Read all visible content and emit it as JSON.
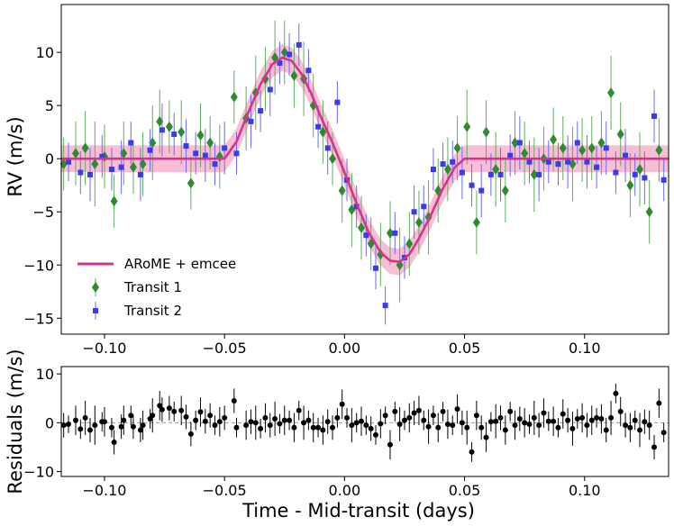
{
  "chart_data": [
    {
      "type": "scatter",
      "panel": "main",
      "ylabel": "RV (m/s)",
      "xlim": [
        -0.118,
        0.135
      ],
      "ylim": [
        -16.5,
        14.5
      ],
      "xticks": [
        -0.1,
        -0.05,
        0.0,
        0.05,
        0.1
      ],
      "xtick_labels": [
        "−0.10",
        "−0.05",
        "0.00",
        "0.05",
        "0.10"
      ],
      "yticks": [
        -15,
        -10,
        -5,
        0,
        5,
        10
      ],
      "ytick_labels": [
        "−15",
        "−10",
        "−5",
        "0",
        "5",
        "10"
      ],
      "grid": false,
      "legend": "lower-left",
      "model": {
        "name": "ARoME + emcee",
        "color": "#d6338a",
        "band_color": "#f7b3cf",
        "x": [
          -0.118,
          -0.05,
          -0.045,
          -0.04,
          -0.035,
          -0.03,
          -0.026,
          -0.022,
          -0.018,
          -0.014,
          -0.01,
          -0.005,
          0.0,
          0.005,
          0.01,
          0.015,
          0.019,
          0.023,
          0.027,
          0.031,
          0.036,
          0.041,
          0.046,
          0.05,
          0.135
        ],
        "y": [
          0,
          0,
          1.6,
          4.4,
          7.0,
          8.9,
          9.5,
          9.2,
          8.0,
          6.2,
          4.0,
          1.5,
          -1.3,
          -4.2,
          -6.9,
          -8.8,
          -9.6,
          -9.7,
          -9.0,
          -7.5,
          -5.3,
          -2.8,
          -0.8,
          0,
          0
        ]
      },
      "series": [
        {
          "name": "Transit 1",
          "marker": "diamond",
          "color": "#2e8b2e",
          "x": [
            -0.117,
            -0.112,
            -0.108,
            -0.104,
            -0.1,
            -0.096,
            -0.092,
            -0.088,
            -0.084,
            -0.08,
            -0.077,
            -0.073,
            -0.068,
            -0.064,
            -0.06,
            -0.056,
            -0.052,
            -0.046,
            -0.041,
            -0.037,
            -0.033,
            -0.029,
            -0.025,
            -0.021,
            -0.017,
            -0.013,
            -0.009,
            -0.005,
            -0.001,
            0.003,
            0.007,
            0.011,
            0.015,
            0.019,
            0.023,
            0.027,
            0.031,
            0.035,
            0.039,
            0.043,
            0.047,
            0.051,
            0.055,
            0.059,
            0.063,
            0.067,
            0.071,
            0.075,
            0.079,
            0.083,
            0.087,
            0.091,
            0.095,
            0.099,
            0.103,
            0.107,
            0.111,
            0.115,
            0.119,
            0.123,
            0.127,
            0.131
          ],
          "y": [
            -0.5,
            0.5,
            1.0,
            -0.5,
            0.2,
            -4.0,
            0.5,
            -0.8,
            -0.5,
            1.5,
            3.5,
            3.0,
            2.5,
            -2.3,
            2.2,
            1.5,
            0.2,
            5.8,
            3.8,
            6.2,
            7.5,
            9.5,
            10.0,
            7.8,
            7.5,
            5.0,
            2.5,
            0.0,
            -3.0,
            -4.8,
            -6.5,
            -8.0,
            -9.0,
            -7.0,
            -10.0,
            -8.0,
            -6.0,
            -5.5,
            -3.0,
            -1.0,
            1.0,
            3.0,
            -6.0,
            2.5,
            -1.0,
            -3.0,
            1.5,
            0.5,
            -1.5,
            0.0,
            1.8,
            1.0,
            -0.5,
            0.8,
            1.0,
            1.5,
            6.2,
            2.3,
            -2.5,
            -1.0,
            -5.0,
            0.8
          ],
          "yerr": [
            2.5,
            3.0,
            3.5,
            4.0,
            3.0,
            2.5,
            3.0,
            2.5,
            3.0,
            3.5,
            3.0,
            2.5,
            3.0,
            2.5,
            3.0,
            2.5,
            3.0,
            2.5,
            3.0,
            3.5,
            3.0,
            3.5,
            3.0,
            3.0,
            3.5,
            3.0,
            3.0,
            2.5,
            3.0,
            3.5,
            3.0,
            2.5,
            3.0,
            3.0,
            3.5,
            3.0,
            3.0,
            3.5,
            3.0,
            3.0,
            3.0,
            3.5,
            3.0,
            3.0,
            3.5,
            3.0,
            3.0,
            3.0,
            3.5,
            3.0,
            3.0,
            3.0,
            3.5,
            3.0,
            3.0,
            3.0,
            3.5,
            3.0,
            3.0,
            3.5,
            3.0,
            3.0
          ]
        },
        {
          "name": "Transit 2",
          "marker": "square",
          "color": "#3a3af0",
          "x": [
            -0.115,
            -0.11,
            -0.106,
            -0.101,
            -0.097,
            -0.093,
            -0.089,
            -0.085,
            -0.081,
            -0.076,
            -0.071,
            -0.066,
            -0.062,
            -0.058,
            -0.054,
            -0.05,
            -0.045,
            -0.039,
            -0.035,
            -0.031,
            -0.027,
            -0.023,
            -0.019,
            -0.015,
            -0.011,
            -0.007,
            -0.003,
            0.001,
            0.005,
            0.009,
            0.013,
            0.017,
            0.021,
            0.025,
            0.029,
            0.033,
            0.037,
            0.041,
            0.045,
            0.049,
            0.053,
            0.057,
            0.061,
            0.065,
            0.069,
            0.073,
            0.077,
            0.081,
            0.085,
            0.089,
            0.093,
            0.097,
            0.101,
            0.105,
            0.109,
            0.113,
            0.117,
            0.121,
            0.125,
            0.129,
            0.133
          ],
          "y": [
            -0.3,
            -1.3,
            -1.5,
            0.2,
            -1.0,
            -0.8,
            1.5,
            -1.5,
            0.8,
            2.7,
            2.3,
            1.2,
            0.5,
            0.3,
            -0.5,
            1.0,
            0.5,
            3.5,
            4.5,
            6.5,
            9.0,
            9.8,
            10.7,
            8.3,
            3.0,
            1.0,
            5.3,
            -2.0,
            -4.5,
            -7.2,
            -10.3,
            -13.8,
            -7.0,
            -9.3,
            -5.0,
            -4.5,
            -1.0,
            -0.5,
            -0.3,
            -1.3,
            -2.5,
            -3.0,
            -1.5,
            -1.5,
            0.3,
            1.5,
            -0.3,
            -1.5,
            -0.3,
            -0.5,
            -0.3,
            1.5,
            -0.3,
            -0.8,
            1.0,
            -1.3,
            0.3,
            -1.5,
            -1.8,
            4.0,
            -2.0
          ],
          "yerr": [
            1.8,
            2.0,
            2.5,
            2.0,
            2.0,
            2.5,
            2.0,
            2.5,
            2.0,
            2.5,
            2.0,
            2.5,
            2.0,
            2.5,
            2.0,
            2.5,
            2.0,
            2.5,
            2.0,
            2.5,
            2.0,
            2.0,
            2.0,
            2.0,
            2.0,
            2.5,
            2.0,
            2.0,
            2.0,
            2.0,
            2.0,
            1.8,
            2.0,
            2.0,
            2.5,
            2.0,
            2.0,
            2.0,
            2.0,
            2.5,
            2.0,
            2.5,
            2.0,
            2.5,
            2.0,
            2.5,
            2.0,
            2.5,
            2.0,
            2.0,
            2.5,
            2.0,
            2.5,
            2.0,
            2.5,
            2.0,
            2.5,
            2.0,
            2.5,
            2.5,
            2.0
          ]
        }
      ]
    },
    {
      "type": "scatter",
      "panel": "residuals",
      "xlabel": "Time - Mid-transit (days)",
      "ylabel": "Residuals (m/s)",
      "xlim": [
        -0.118,
        0.135
      ],
      "ylim": [
        -11,
        11.5
      ],
      "xticks": [
        -0.1,
        -0.05,
        0.0,
        0.05,
        0.1
      ],
      "xtick_labels": [
        "−0.10",
        "−0.05",
        "0.00",
        "0.05",
        "0.10"
      ],
      "yticks": [
        -10,
        0,
        10
      ],
      "ytick_labels": [
        "−10",
        "0",
        "10"
      ],
      "zero_line": true,
      "grid": false,
      "series": [
        {
          "color": "#000000",
          "marker": "circle",
          "x": [
            -0.117,
            -0.115,
            -0.112,
            -0.11,
            -0.108,
            -0.106,
            -0.104,
            -0.101,
            -0.1,
            -0.097,
            -0.096,
            -0.093,
            -0.092,
            -0.089,
            -0.088,
            -0.085,
            -0.084,
            -0.081,
            -0.08,
            -0.077,
            -0.076,
            -0.073,
            -0.071,
            -0.068,
            -0.066,
            -0.064,
            -0.062,
            -0.06,
            -0.058,
            -0.056,
            -0.054,
            -0.052,
            -0.05,
            -0.046,
            -0.045,
            -0.041,
            -0.039,
            -0.037,
            -0.035,
            -0.033,
            -0.031,
            -0.029,
            -0.027,
            -0.025,
            -0.023,
            -0.021,
            -0.019,
            -0.017,
            -0.015,
            -0.013,
            -0.011,
            -0.009,
            -0.007,
            -0.005,
            -0.003,
            -0.001,
            0.001,
            0.003,
            0.005,
            0.007,
            0.009,
            0.011,
            0.013,
            0.015,
            0.017,
            0.019,
            0.021,
            0.023,
            0.025,
            0.027,
            0.029,
            0.031,
            0.033,
            0.035,
            0.037,
            0.039,
            0.041,
            0.043,
            0.045,
            0.047,
            0.049,
            0.051,
            0.053,
            0.055,
            0.057,
            0.059,
            0.061,
            0.063,
            0.065,
            0.067,
            0.069,
            0.071,
            0.073,
            0.075,
            0.077,
            0.079,
            0.081,
            0.083,
            0.085,
            0.087,
            0.089,
            0.091,
            0.093,
            0.095,
            0.097,
            0.099,
            0.101,
            0.103,
            0.105,
            0.107,
            0.109,
            0.111,
            0.113,
            0.115,
            0.117,
            0.119,
            0.121,
            0.123,
            0.125,
            0.127,
            0.129,
            0.131,
            0.133
          ],
          "y": [
            -0.5,
            -0.3,
            0.5,
            -1.3,
            1.0,
            -1.5,
            -0.5,
            0.2,
            0.2,
            -1.0,
            -4.0,
            -0.8,
            0.5,
            1.5,
            -0.8,
            -1.5,
            -0.5,
            0.8,
            1.5,
            3.5,
            2.7,
            3.0,
            2.3,
            2.5,
            1.2,
            -2.3,
            0.5,
            2.2,
            0.3,
            1.5,
            -0.5,
            0.2,
            1.0,
            4.5,
            -1.0,
            -0.5,
            0.2,
            0.0,
            -1.2,
            1.0,
            -0.5,
            0.8,
            -0.2,
            0.5,
            0.5,
            -1.0,
            2.5,
            0.0,
            0.5,
            -1.0,
            -1.0,
            -1.5,
            0.2,
            -1.0,
            1.0,
            3.8,
            1.0,
            -0.5,
            0.0,
            0.3,
            -0.5,
            -1.2,
            -2.5,
            -0.2,
            1.5,
            -4.5,
            2.3,
            -0.3,
            0.5,
            1.0,
            2.0,
            2.5,
            0.5,
            -0.8,
            1.5,
            -1.0,
            2.3,
            -0.3,
            -0.5,
            2.8,
            0.0,
            -1.0,
            -6.0,
            1.5,
            -1.0,
            -3.0,
            0.2,
            0.3,
            1.0,
            -1.5,
            2.3,
            -0.5,
            0.8,
            0.0,
            -0.3,
            1.0,
            -0.5,
            2.0,
            0.3,
            0.3,
            -1.0,
            1.8,
            0.5,
            -1.2,
            0.8,
            1.0,
            -0.5,
            0.5,
            1.0,
            0.8,
            -1.5,
            1.0,
            6.0,
            2.3,
            -0.5,
            -1.0,
            0.5,
            -1.5,
            0.2,
            -0.5,
            -5.0,
            4.0,
            -2.0
          ],
          "yerr": [
            2.5,
            1.8,
            3.0,
            2.0,
            3.5,
            2.5,
            4.0,
            2.0,
            3.0,
            2.0,
            2.5,
            2.5,
            3.0,
            2.0,
            2.5,
            2.5,
            3.0,
            2.0,
            3.5,
            3.0,
            2.5,
            2.5,
            2.0,
            3.0,
            2.5,
            2.5,
            2.0,
            3.0,
            2.5,
            2.5,
            2.0,
            3.0,
            2.5,
            2.5,
            2.0,
            3.0,
            2.5,
            3.5,
            2.0,
            3.0,
            2.5,
            3.5,
            2.0,
            3.0,
            2.0,
            3.0,
            2.0,
            3.5,
            2.0,
            3.0,
            2.0,
            3.0,
            2.5,
            2.5,
            2.0,
            3.0,
            2.0,
            3.5,
            2.0,
            3.0,
            2.0,
            2.5,
            2.0,
            3.0,
            1.8,
            3.0,
            2.0,
            3.5,
            2.0,
            3.0,
            2.5,
            3.0,
            2.0,
            3.5,
            2.0,
            3.0,
            2.0,
            3.0,
            2.0,
            3.0,
            2.5,
            3.5,
            2.0,
            3.0,
            2.5,
            3.0,
            2.0,
            3.5,
            2.5,
            3.0,
            2.0,
            3.0,
            2.5,
            3.0,
            2.0,
            3.5,
            2.5,
            3.0,
            2.0,
            3.0,
            2.0,
            3.0,
            2.5,
            3.5,
            2.0,
            3.0,
            2.5,
            3.0,
            2.0,
            3.0,
            2.5,
            3.5,
            2.0,
            3.0,
            2.5,
            3.0,
            2.0,
            3.5,
            2.5,
            3.0,
            2.5,
            3.0,
            2.0
          ]
        }
      ]
    }
  ]
}
